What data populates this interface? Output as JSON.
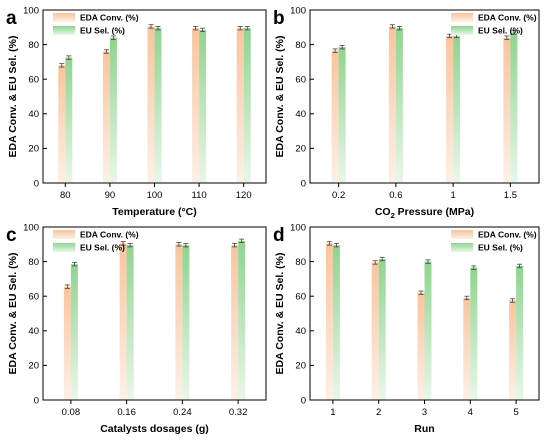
{
  "colors": {
    "eda": "#f9c49e",
    "eu": "#8fd48f",
    "eda_light": "#fdf0e6",
    "eu_light": "#e9f7e9",
    "axis": "#000000",
    "errorbar": "#444444"
  },
  "chart_data": [
    {
      "panel": "a",
      "type": "bar",
      "xlabel": "Temperature (°C)",
      "ylabel": "EDA Conv. & EU Sel. (%)",
      "ylim": [
        0,
        100
      ],
      "yticks": [
        0,
        20,
        40,
        60,
        80,
        100
      ],
      "categories": [
        "80",
        "90",
        "100",
        "110",
        "120"
      ],
      "series": [
        {
          "name": "EDA Conv. (%)",
          "values": [
            68,
            76,
            90.5,
            89.5,
            89.5
          ],
          "errors": [
            1,
            1,
            1,
            1,
            1
          ]
        },
        {
          "name": "EU Sel. (%)",
          "values": [
            72.5,
            84,
            89.5,
            88.5,
            89.5
          ],
          "errors": [
            1,
            1,
            1,
            1,
            1
          ]
        }
      ],
      "legend_position": "top-left"
    },
    {
      "panel": "b",
      "type": "bar",
      "xlabel_pre": "CO",
      "xlabel_sub": "2",
      "xlabel_post": " Pressure (MPa)",
      "ylabel": "EDA Conv. & EU Sel. (%)",
      "ylim": [
        0,
        100
      ],
      "yticks": [
        0,
        20,
        40,
        60,
        80,
        100
      ],
      "categories": [
        "0.2",
        "0.6",
        "1",
        "1.5"
      ],
      "series": [
        {
          "name": "EDA Conv. (%)",
          "values": [
            76.5,
            90.5,
            85,
            84
          ],
          "errors": [
            1,
            1,
            1,
            1
          ]
        },
        {
          "name": "EU Sel. (%)",
          "values": [
            78.5,
            89.5,
            85,
            87
          ],
          "errors": [
            1,
            1,
            1,
            1
          ]
        }
      ],
      "legend_position": "top-right"
    },
    {
      "panel": "c",
      "type": "bar",
      "xlabel": "Catalysts dosages (g)",
      "ylabel": "EDA Conv. & EU Sel. (%)",
      "ylim": [
        0,
        100
      ],
      "yticks": [
        0,
        20,
        40,
        60,
        80,
        100
      ],
      "categories": [
        "0.08",
        "0.16",
        "0.24",
        "0.32"
      ],
      "series": [
        {
          "name": "EDA Conv. (%)",
          "values": [
            65.5,
            90.5,
            90,
            89.5
          ],
          "errors": [
            1,
            1,
            1,
            1
          ]
        },
        {
          "name": "EU Sel. (%)",
          "values": [
            78.5,
            89.5,
            89.5,
            92
          ],
          "errors": [
            1,
            1,
            1,
            1
          ]
        }
      ],
      "legend_position": "top-left"
    },
    {
      "panel": "d",
      "type": "bar",
      "xlabel": "Run",
      "ylabel": "EDA Conv. & EU Sel. (%)",
      "ylim": [
        0,
        100
      ],
      "yticks": [
        0,
        20,
        40,
        60,
        80,
        100
      ],
      "categories": [
        "1",
        "2",
        "3",
        "4",
        "5"
      ],
      "series": [
        {
          "name": "EDA Conv. (%)",
          "values": [
            90.5,
            79.5,
            62,
            59,
            57.5
          ],
          "errors": [
            1,
            1,
            1,
            1,
            1
          ]
        },
        {
          "name": "EU Sel. (%)",
          "values": [
            89.5,
            81.5,
            80,
            76.5,
            77.5
          ],
          "errors": [
            1,
            1,
            1,
            1,
            1
          ]
        }
      ],
      "legend_position": "top-right"
    }
  ]
}
